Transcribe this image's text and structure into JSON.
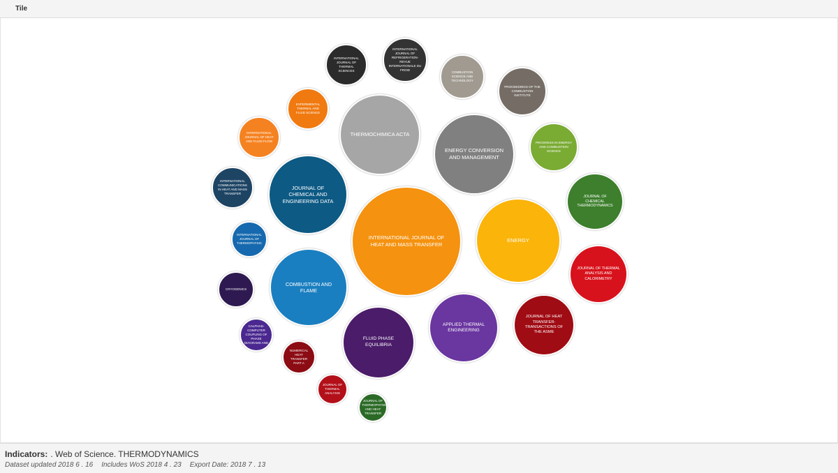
{
  "header": {
    "tab": "Tile"
  },
  "bubbles": [
    {
      "label": "INTERNATIONAL JOURNAL OF THERMAL SCIENCES",
      "color": "#2b2b2b"
    },
    {
      "label": "INTERNATIONAL JOURNAL OF REFRIGERATION-REVUE INTERNATIONALE DU FROID",
      "color": "#333333"
    },
    {
      "label": "COMBUSTION SCIENCE AND TECHNOLOGY",
      "color": "#a09a90"
    },
    {
      "label": "PROCEEDINGS OF THE COMBUSTION INSTITUTE",
      "color": "#756d65"
    },
    {
      "label": "EXPERIMENTAL THERMAL AND FLUID SCIENCE",
      "color": "#f07a10"
    },
    {
      "label": "THERMOCHIMICA ACTA",
      "color": "#a6a6a6"
    },
    {
      "label": "ENERGY CONVERSION AND MANAGEMENT",
      "color": "#808080"
    },
    {
      "label": "PROGRESS IN ENERGY AND COMBUSTION SCIENCE",
      "color": "#7aab33"
    },
    {
      "label": "INTERNATIONAL JOURNAL OF HEAT AND FLUID FLOW",
      "color": "#f58220"
    },
    {
      "label": "INTERNATIONAL COMMUNICATIONS IN HEAT AND MASS TRANSFER",
      "color": "#1e4464"
    },
    {
      "label": "JOURNAL OF CHEMICAL AND ENGINEERING DATA",
      "color": "#0d5a84"
    },
    {
      "label": "JOURNAL OF CHEMICAL THERMODYNAMICS",
      "color": "#3d7f2c"
    },
    {
      "label": "INTERNATIONAL JOURNAL OF HEAT AND MASS TRANSFER",
      "color": "#f5920f"
    },
    {
      "label": "ENERGY",
      "color": "#fbb40a"
    },
    {
      "label": "INTERNATIONAL JOURNAL OF THERMOPHYSIC",
      "color": "#1669ae"
    },
    {
      "label": "JOURNAL OF THERMAL ANALYSIS AND CALORIMETRY",
      "color": "#d8121c"
    },
    {
      "label": "CRYOGENICS",
      "color": "#2e1a50"
    },
    {
      "label": "COMBUSTION AND FLAME",
      "color": "#1a7fc0"
    },
    {
      "label": "APPLIED THERMAL ENGINEERING",
      "color": "#6a36a0"
    },
    {
      "label": "JOURNAL OF HEAT TRANSFER-TRANSACTIONS OF THE ASME",
      "color": "#a00c14"
    },
    {
      "label": "FLUID PHASE EQUILIBRIA",
      "color": "#4b1c6a"
    },
    {
      "label": "CALPHAD-COMPUTER COUPLING OF PHASE DIAGRAMS AND",
      "color": "#4a2890"
    },
    {
      "label": "NUMERICAL HEAT TRANSFER PART A",
      "color": "#8c0c14"
    },
    {
      "label": "JOURNAL OF THERMAL ANALYSIS",
      "color": "#b3101a"
    },
    {
      "label": "JOURNAL OF THERMOPHYSICS AND HEAT TRANSFER",
      "color": "#2b6a26"
    }
  ],
  "footer": {
    "indicators_label": "Indicators:",
    "indicators": ". Web of Science. THERMODYNAMICS",
    "dataset": "Dataset updated 2018 6 . 16",
    "includes": "Includes WoS 2018 4 . 23",
    "export": "Export Date: 2018 7 . 13"
  }
}
